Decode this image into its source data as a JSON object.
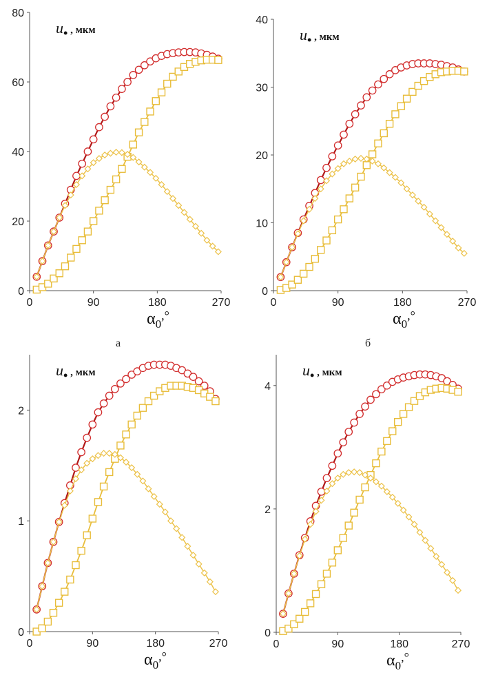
{
  "figure": {
    "panel_letters": [
      "а",
      "б"
    ]
  },
  "colors": {
    "circle_series": "#d22d2d",
    "circle_line": "#b01818",
    "square_series": "#e8bd3a",
    "diamond_series": "#ecc24a"
  },
  "chart_data": [
    {
      "type": "line",
      "annotation": {
        "symbol": "u",
        "subscript": "•",
        "unit": ", мкм"
      },
      "xlabel": {
        "symbol": "α",
        "subscript": "0",
        "unit": ",°"
      },
      "xlim": [
        0,
        270
      ],
      "ylim": [
        0,
        80
      ],
      "xticks": [
        0,
        90,
        180,
        270
      ],
      "yticks": [
        0,
        20,
        40,
        60,
        80
      ],
      "x": [
        10,
        18,
        26,
        34,
        42,
        50,
        58,
        66,
        74,
        82,
        90,
        98,
        106,
        114,
        122,
        130,
        138,
        146,
        154,
        162,
        170,
        178,
        186,
        194,
        202,
        210,
        218,
        226,
        234,
        242,
        250,
        258,
        266
      ],
      "series": [
        {
          "marker": "circle",
          "values": [
            4,
            8.5,
            13,
            17,
            21,
            25,
            29,
            33,
            36.5,
            40,
            43.5,
            47,
            50,
            53,
            55.5,
            58,
            60,
            62,
            63.5,
            64.8,
            65.9,
            66.8,
            67.5,
            68,
            68.3,
            68.5,
            68.6,
            68.6,
            68.5,
            68.2,
            67.8,
            67.3,
            66.7
          ]
        },
        {
          "marker": "square",
          "values": [
            0.3,
            1,
            2,
            3.5,
            5,
            7,
            9.5,
            12,
            14.5,
            17,
            20,
            23,
            26,
            29,
            32,
            35,
            38.5,
            42,
            45.5,
            48.5,
            51.5,
            54.5,
            57,
            59.5,
            61.5,
            63,
            64.3,
            65.2,
            65.8,
            66.2,
            66.4,
            66.4,
            66.3
          ]
        },
        {
          "marker": "diamond",
          "values": [
            4,
            8.5,
            13,
            17,
            21,
            24.5,
            27.5,
            30.5,
            33,
            35,
            36.8,
            38,
            39,
            39.5,
            39.8,
            39.7,
            39.2,
            38.3,
            37,
            35.5,
            34,
            32.3,
            30.5,
            28.5,
            26.5,
            24.5,
            22.5,
            20.5,
            18.5,
            16.5,
            14.5,
            12.8,
            11.2
          ]
        }
      ]
    },
    {
      "type": "line",
      "annotation": {
        "symbol": "u",
        "subscript": "•",
        "unit": ", мкм"
      },
      "xlabel": {
        "symbol": "α",
        "subscript": "0",
        "unit": ",°"
      },
      "xlim": [
        0,
        270
      ],
      "ylim": [
        0,
        40
      ],
      "xticks": [
        0,
        90,
        180,
        270
      ],
      "yticks": [
        0,
        10,
        20,
        30,
        40
      ],
      "x": [
        10,
        18,
        26,
        34,
        42,
        50,
        58,
        66,
        74,
        82,
        90,
        98,
        106,
        114,
        122,
        130,
        138,
        146,
        154,
        162,
        170,
        178,
        186,
        194,
        202,
        210,
        218,
        226,
        234,
        242,
        250,
        258,
        266
      ],
      "series": [
        {
          "marker": "circle",
          "values": [
            2,
            4.2,
            6.4,
            8.5,
            10.5,
            12.5,
            14.4,
            16.3,
            18.1,
            19.8,
            21.4,
            23,
            24.6,
            26,
            27.3,
            28.5,
            29.5,
            30.4,
            31.2,
            31.9,
            32.5,
            32.9,
            33.2,
            33.4,
            33.5,
            33.5,
            33.5,
            33.4,
            33.3,
            33.1,
            32.9,
            32.6,
            32.3
          ]
        },
        {
          "marker": "square",
          "values": [
            0.1,
            0.4,
            0.9,
            1.6,
            2.5,
            3.5,
            4.7,
            6,
            7.4,
            8.9,
            10.5,
            12,
            13.6,
            15.2,
            16.8,
            18.5,
            20.1,
            21.7,
            23.2,
            24.6,
            26,
            27.2,
            28.3,
            29.3,
            30.2,
            30.9,
            31.5,
            31.9,
            32.2,
            32.3,
            32.4,
            32.4,
            32.3
          ]
        },
        {
          "marker": "diamond",
          "values": [
            2,
            4.2,
            6.4,
            8.4,
            10.3,
            12,
            13.6,
            15,
            16.2,
            17.2,
            18,
            18.7,
            19.1,
            19.4,
            19.5,
            19.4,
            19.1,
            18.7,
            18.1,
            17.4,
            16.7,
            15.9,
            15,
            14.1,
            13.2,
            12.3,
            11.3,
            10.3,
            9.3,
            8.3,
            7.3,
            6.3,
            5.5
          ]
        }
      ]
    },
    {
      "type": "line",
      "annotation": {
        "symbol": "u",
        "subscript": "•",
        "unit": ", мкм"
      },
      "xlabel": {
        "symbol": "α",
        "subscript": "0",
        "unit": ",°"
      },
      "xlim": [
        0,
        270
      ],
      "ylim": [
        0,
        2.5
      ],
      "xticks": [
        0,
        90,
        180,
        270
      ],
      "yticks": [
        0,
        1,
        2
      ],
      "x": [
        10,
        18,
        26,
        34,
        42,
        50,
        58,
        66,
        74,
        82,
        90,
        98,
        106,
        114,
        122,
        130,
        138,
        146,
        154,
        162,
        170,
        178,
        186,
        194,
        202,
        210,
        218,
        226,
        234,
        242,
        250,
        258,
        266
      ],
      "series": [
        {
          "marker": "circle",
          "values": [
            0.2,
            0.41,
            0.62,
            0.81,
            0.99,
            1.16,
            1.32,
            1.48,
            1.62,
            1.75,
            1.87,
            1.98,
            2.06,
            2.13,
            2.19,
            2.24,
            2.28,
            2.32,
            2.35,
            2.38,
            2.4,
            2.41,
            2.41,
            2.41,
            2.4,
            2.38,
            2.36,
            2.33,
            2.3,
            2.26,
            2.22,
            2.17,
            2.1
          ]
        },
        {
          "marker": "square",
          "values": [
            0,
            0.03,
            0.09,
            0.17,
            0.26,
            0.36,
            0.47,
            0.6,
            0.73,
            0.87,
            1.02,
            1.17,
            1.31,
            1.44,
            1.56,
            1.68,
            1.78,
            1.87,
            1.95,
            2.02,
            2.08,
            2.13,
            2.17,
            2.2,
            2.22,
            2.22,
            2.22,
            2.21,
            2.2,
            2.18,
            2.15,
            2.12,
            2.08
          ]
        },
        {
          "marker": "diamond",
          "values": [
            0.2,
            0.41,
            0.62,
            0.81,
            0.99,
            1.14,
            1.27,
            1.38,
            1.46,
            1.52,
            1.56,
            1.59,
            1.61,
            1.61,
            1.6,
            1.57,
            1.53,
            1.48,
            1.42,
            1.36,
            1.29,
            1.22,
            1.15,
            1.08,
            1,
            0.93,
            0.85,
            0.77,
            0.69,
            0.61,
            0.53,
            0.45,
            0.36
          ]
        }
      ]
    },
    {
      "type": "line",
      "annotation": {
        "symbol": "u",
        "subscript": "•",
        "unit": ", мкм"
      },
      "xlabel": {
        "symbol": "α",
        "subscript": "0",
        "unit": ",°"
      },
      "xlim": [
        0,
        270
      ],
      "ylim": [
        0,
        4.5
      ],
      "xticks": [
        0,
        90,
        180,
        270
      ],
      "yticks": [
        0,
        2,
        4
      ],
      "x": [
        10,
        18,
        26,
        34,
        42,
        50,
        58,
        66,
        74,
        82,
        90,
        98,
        106,
        114,
        122,
        130,
        138,
        146,
        154,
        162,
        170,
        178,
        186,
        194,
        202,
        210,
        218,
        226,
        234,
        242,
        250,
        258,
        266
      ],
      "series": [
        {
          "marker": "circle",
          "values": [
            0.3,
            0.63,
            0.95,
            1.25,
            1.53,
            1.8,
            2.05,
            2.28,
            2.5,
            2.7,
            2.9,
            3.08,
            3.25,
            3.4,
            3.54,
            3.66,
            3.77,
            3.86,
            3.94,
            4,
            4.06,
            4.1,
            4.13,
            4.15,
            4.17,
            4.18,
            4.18,
            4.17,
            4.15,
            4.12,
            4.07,
            4.01,
            3.95
          ]
        },
        {
          "marker": "square",
          "values": [
            0.02,
            0.06,
            0.13,
            0.22,
            0.33,
            0.47,
            0.62,
            0.78,
            0.95,
            1.13,
            1.33,
            1.53,
            1.73,
            1.94,
            2.15,
            2.35,
            2.55,
            2.74,
            2.93,
            3.1,
            3.26,
            3.41,
            3.54,
            3.65,
            3.75,
            3.83,
            3.89,
            3.93,
            3.95,
            3.96,
            3.95,
            3.93,
            3.9
          ]
        },
        {
          "marker": "diamond",
          "values": [
            0.3,
            0.63,
            0.95,
            1.24,
            1.51,
            1.75,
            1.96,
            2.14,
            2.29,
            2.41,
            2.5,
            2.56,
            2.59,
            2.6,
            2.59,
            2.55,
            2.5,
            2.44,
            2.37,
            2.28,
            2.19,
            2.09,
            1.98,
            1.87,
            1.75,
            1.62,
            1.49,
            1.36,
            1.23,
            1.1,
            0.97,
            0.84,
            0.68
          ]
        }
      ]
    }
  ]
}
